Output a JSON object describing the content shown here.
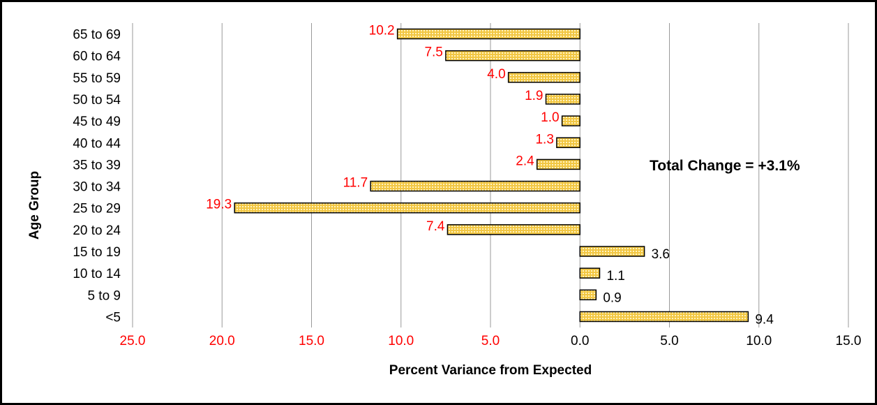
{
  "chart_data": {
    "type": "bar",
    "orientation": "horizontal",
    "categories": [
      "65 to 69",
      "60 to 64",
      "55 to 59",
      "50 to 54",
      "45 to 49",
      "40 to 44",
      "35 to 39",
      "30 to 34",
      "25 to 29",
      "20 to 24",
      "15 to 19",
      "10 to 14",
      "5 to 9",
      "<5"
    ],
    "values": [
      -10.2,
      -7.5,
      -4.0,
      -1.9,
      -1.0,
      -1.3,
      -2.4,
      -11.7,
      -19.3,
      -7.4,
      3.6,
      1.1,
      0.9,
      9.4
    ],
    "data_labels": [
      "10.2",
      "7.5",
      "4.0",
      "1.9",
      "1.0",
      "1.3",
      "2.4",
      "11.7",
      "19.3",
      "7.4",
      "3.6",
      "1.1",
      "0.9",
      "9.4"
    ],
    "xlim": [
      -25,
      15
    ],
    "xticks": [
      -25,
      -20,
      -15,
      -10,
      -5,
      0,
      5,
      10,
      15
    ],
    "xtick_labels": [
      "25.0",
      "20.0",
      "15.0",
      "10.0",
      "5.0",
      "0.0",
      "5.0",
      "10.0",
      "15.0"
    ],
    "xlabel": "Percent Variance from Expected",
    "ylabel": "Age Group",
    "title": "",
    "annotation": "Total Change = +3.1%",
    "grid": "vertical",
    "colors": {
      "bar_fill": "#f2c744",
      "bar_pattern": "#fff3c2",
      "bar_border": "#000000",
      "negative_text": "#ff0000",
      "positive_text": "#000000",
      "grid": "#999999"
    }
  }
}
